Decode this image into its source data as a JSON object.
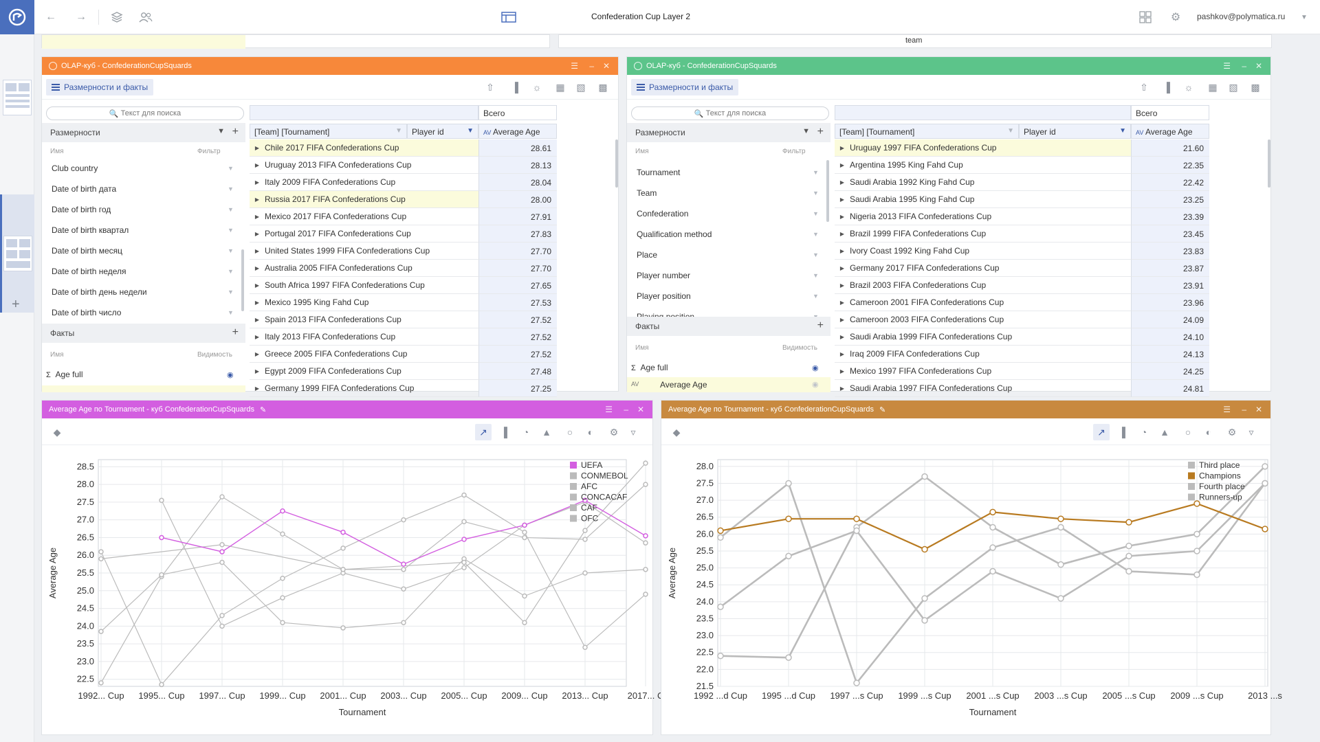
{
  "topbar": {
    "title": "Confederation Cup Layer 2",
    "user": "pashkov@polymatica.ru"
  },
  "left_olap": {
    "title": "OLAP-куб - ConfederationCupSquards",
    "color": "#f7883a",
    "dim_button": "Размерности и факты",
    "search_placeholder": "Текст для поиска",
    "dims_header": "Размерности",
    "col_name": "Имя",
    "col_filter": "Фильтр",
    "dims": [
      "Club country",
      "Date of birth дата",
      "Date of birth год",
      "Date of birth квартал",
      "Date of birth месяц",
      "Date of birth неделя",
      "Date of birth день недели",
      "Date of birth число"
    ],
    "facts_header": "Факты",
    "col_visibility": "Видимость",
    "facts": [
      "Age full"
    ],
    "total_label": "Всего",
    "col1": "[Team] [Tournament]",
    "col2": "Player id",
    "col3": "Average Age",
    "rows": [
      {
        "label": "Chile 2017 FIFA Confederations Cup",
        "value": "28.61",
        "hl": true
      },
      {
        "label": "Uruguay 2013 FIFA Confederations Cup",
        "value": "28.13"
      },
      {
        "label": "Italy 2009 FIFA Confederations Cup",
        "value": "28.04"
      },
      {
        "label": "Russia 2017 FIFA Confederations Cup",
        "value": "28.00",
        "hl": true
      },
      {
        "label": "Mexico 2017 FIFA Confederations Cup",
        "value": "27.91"
      },
      {
        "label": "Portugal 2017 FIFA Confederations Cup",
        "value": "27.83"
      },
      {
        "label": "United States 1999 FIFA Confederations Cup",
        "value": "27.70"
      },
      {
        "label": "Australia 2005 FIFA Confederations Cup",
        "value": "27.70"
      },
      {
        "label": "South Africa 1997 FIFA Confederations Cup",
        "value": "27.65"
      },
      {
        "label": "Mexico 1995 King Fahd Cup",
        "value": "27.53"
      },
      {
        "label": "Spain 2013 FIFA Confederations Cup",
        "value": "27.52"
      },
      {
        "label": "Italy 2013 FIFA Confederations Cup",
        "value": "27.52"
      },
      {
        "label": "Greece 2005 FIFA Confederations Cup",
        "value": "27.52"
      },
      {
        "label": "Egypt 2009 FIFA Confederations Cup",
        "value": "27.48"
      },
      {
        "label": "Germany 1999 FIFA Confederations Cup",
        "value": "27.25"
      }
    ]
  },
  "right_olap": {
    "title": "OLAP-куб - ConfederationCupSquards",
    "color": "#5cc48a",
    "dim_button": "Размерности и факты",
    "search_placeholder": "Текст для поиска",
    "dims_header": "Размерности",
    "col_name": "Имя",
    "col_filter": "Фильтр",
    "dims": [
      "Tournament",
      "Team",
      "Confederation",
      "Qualification method",
      "Place",
      "Player number",
      "Player position",
      "Playing position"
    ],
    "facts_header": "Факты",
    "col_visibility": "Видимость",
    "facts": [
      "Age full",
      "Average Age"
    ],
    "total_label": "Всего",
    "col1": "[Team] [Tournament]",
    "col2": "Player id",
    "col3": "Average Age",
    "rows": [
      {
        "label": "Uruguay 1997 FIFA Confederations Cup",
        "value": "21.60",
        "hl": true
      },
      {
        "label": "Argentina 1995 King Fahd Cup",
        "value": "22.35"
      },
      {
        "label": "Saudi Arabia 1992 King Fahd Cup",
        "value": "22.42"
      },
      {
        "label": "Saudi Arabia 1995 King Fahd Cup",
        "value": "23.25"
      },
      {
        "label": "Nigeria 2013 FIFA Confederations Cup",
        "value": "23.39"
      },
      {
        "label": "Brazil 1999 FIFA Confederations Cup",
        "value": "23.45"
      },
      {
        "label": "Ivory Coast 1992 King Fahd Cup",
        "value": "23.83"
      },
      {
        "label": "Germany 2017 FIFA Confederations Cup",
        "value": "23.87"
      },
      {
        "label": "Brazil 2003 FIFA Confederations Cup",
        "value": "23.91"
      },
      {
        "label": "Cameroon 2001 FIFA Confederations Cup",
        "value": "23.96"
      },
      {
        "label": "Cameroon 2003 FIFA Confederations Cup",
        "value": "24.09"
      },
      {
        "label": "Saudi Arabia 1999 FIFA Confederations Cup",
        "value": "24.10"
      },
      {
        "label": "Iraq 2009 FIFA Confederations Cup",
        "value": "24.13"
      },
      {
        "label": "Mexico 1997 FIFA Confederations Cup",
        "value": "24.25"
      },
      {
        "label": "Saudi Arabia 1997 FIFA Confederations Cup",
        "value": "24.81"
      }
    ]
  },
  "left_chart_panel": {
    "title": "Average Age по Tournament - куб ConfederationCupSquards",
    "color": "#d35ee0"
  },
  "right_chart_panel": {
    "title": "Average Age по Tournament - куб ConfederationCupSquards",
    "color": "#c8893f"
  },
  "chart_data": [
    {
      "type": "line",
      "xlabel": "Tournament",
      "ylabel": "Average Age",
      "ylim": [
        22.3,
        28.7
      ],
      "yticks": [
        22.5,
        23.0,
        23.5,
        24.0,
        24.5,
        25.0,
        25.5,
        26.0,
        26.5,
        27.0,
        27.5,
        28.0,
        28.5
      ],
      "categories": [
        "1992... Cup",
        "1995... Cup",
        "1997... Cup",
        "1999... Cup",
        "2001... Cup",
        "2003... Cup",
        "2005... Cup",
        "2009... Cup",
        "2013... Cup",
        "2017... C"
      ],
      "legend_position": "top-right",
      "series": [
        {
          "name": "UEFA",
          "color": "#d35ee0",
          "values": [
            null,
            26.5,
            26.1,
            27.25,
            26.65,
            25.75,
            26.45,
            26.85,
            27.55,
            26.55
          ]
        },
        {
          "name": "CONMEBOL",
          "color": "#bbbbbb",
          "values": [
            22.4,
            25.4,
            27.65,
            26.6,
            25.6,
            25.6,
            26.95,
            26.5,
            26.45,
            28.0
          ]
        },
        {
          "name": "AFC",
          "color": "#bbbbbb",
          "values": [
            26.1,
            22.35,
            24.3,
            25.35,
            26.2,
            27.0,
            27.7,
            26.65,
            23.4,
            24.9
          ]
        },
        {
          "name": "CONCACAF",
          "color": "#bbbbbb",
          "values": [
            null,
            27.55,
            24.0,
            24.8,
            25.5,
            25.05,
            25.65,
            26.85,
            27.5,
            26.35
          ]
        },
        {
          "name": "CAF",
          "color": "#bbbbbb",
          "values": [
            23.85,
            25.45,
            25.8,
            24.1,
            23.95,
            24.1,
            25.9,
            24.85,
            25.5,
            25.6
          ]
        },
        {
          "name": "OFC",
          "color": "#bbbbbb",
          "values": [
            25.9,
            null,
            26.3,
            null,
            25.6,
            null,
            25.8,
            24.1,
            26.7,
            28.6
          ]
        }
      ]
    },
    {
      "type": "line",
      "xlabel": "Tournament",
      "ylabel": "Average Age",
      "ylim": [
        21.5,
        28.2
      ],
      "yticks": [
        21.5,
        22.0,
        22.5,
        23.0,
        23.5,
        24.0,
        24.5,
        25.0,
        25.5,
        26.0,
        26.5,
        27.0,
        27.5,
        28.0
      ],
      "categories": [
        "1992 ...d Cup",
        "1995 ...d Cup",
        "1997 ...s Cup",
        "1999 ...s Cup",
        "2001 ...s Cup",
        "2003 ...s Cup",
        "2005 ...s Cup",
        "2009 ...s Cup",
        "2013 ...s"
      ],
      "legend_position": "top-right",
      "series": [
        {
          "name": "Third place",
          "color": "#bbbbbb",
          "values": [
            22.4,
            22.35,
            26.2,
            27.7,
            26.2,
            25.1,
            25.65,
            26.0,
            28.0
          ]
        },
        {
          "name": "Champions",
          "color": "#b87a20",
          "values": [
            26.1,
            26.45,
            26.45,
            25.55,
            26.65,
            26.45,
            26.35,
            26.9,
            26.15
          ]
        },
        {
          "name": "Fourth place",
          "color": "#bbbbbb",
          "values": [
            25.9,
            27.5,
            21.6,
            24.1,
            25.6,
            26.2,
            24.9,
            24.8,
            27.5
          ]
        },
        {
          "name": "Runners-up",
          "color": "#bbbbbb",
          "values": [
            23.85,
            25.35,
            26.1,
            23.45,
            24.9,
            24.1,
            25.35,
            25.5,
            27.5
          ]
        }
      ]
    }
  ]
}
